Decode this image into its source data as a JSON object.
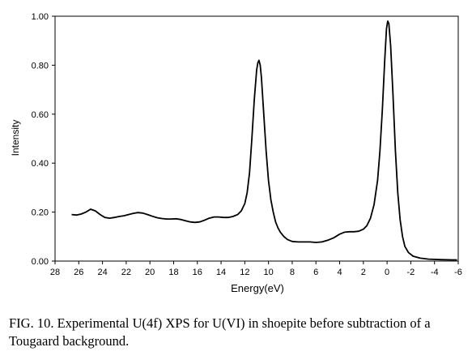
{
  "figure": {
    "caption": "FIG. 10. Experimental U(4f) XPS for U(VI) in shoepite before subtraction of a Tougaard background."
  },
  "chart_data": {
    "type": "line",
    "title": "",
    "xlabel": "Energy(eV)",
    "ylabel": "Intensity",
    "xlim": [
      28,
      -6
    ],
    "ylim": [
      0,
      1.0
    ],
    "x_reversed": true,
    "x_ticks": [
      "28",
      "26",
      "24",
      "22",
      "20",
      "18",
      "16",
      "14",
      "12",
      "10",
      "8",
      "6",
      "4",
      "2",
      "0",
      "-2",
      "-4",
      "-6"
    ],
    "y_ticks": [
      "0.00",
      "0.20",
      "0.40",
      "0.60",
      "0.80",
      "1.00"
    ],
    "grid": false,
    "legend": "none",
    "series": [
      {
        "color": "#000000",
        "points": [
          [
            26.6,
            0.19
          ],
          [
            26.2,
            0.188
          ],
          [
            25.8,
            0.192
          ],
          [
            25.4,
            0.2
          ],
          [
            25.0,
            0.212
          ],
          [
            24.6,
            0.205
          ],
          [
            24.2,
            0.19
          ],
          [
            23.8,
            0.178
          ],
          [
            23.4,
            0.175
          ],
          [
            23.0,
            0.178
          ],
          [
            22.6,
            0.182
          ],
          [
            22.2,
            0.185
          ],
          [
            21.8,
            0.19
          ],
          [
            21.4,
            0.195
          ],
          [
            21.0,
            0.198
          ],
          [
            20.6,
            0.196
          ],
          [
            20.2,
            0.19
          ],
          [
            19.8,
            0.183
          ],
          [
            19.4,
            0.177
          ],
          [
            19.0,
            0.174
          ],
          [
            18.6,
            0.172
          ],
          [
            18.2,
            0.172
          ],
          [
            17.8,
            0.173
          ],
          [
            17.4,
            0.17
          ],
          [
            17.0,
            0.165
          ],
          [
            16.6,
            0.16
          ],
          [
            16.2,
            0.158
          ],
          [
            15.8,
            0.16
          ],
          [
            15.4,
            0.167
          ],
          [
            15.0,
            0.175
          ],
          [
            14.6,
            0.18
          ],
          [
            14.2,
            0.18
          ],
          [
            13.8,
            0.178
          ],
          [
            13.4,
            0.178
          ],
          [
            13.0,
            0.182
          ],
          [
            12.6,
            0.19
          ],
          [
            12.3,
            0.205
          ],
          [
            12.0,
            0.235
          ],
          [
            11.8,
            0.28
          ],
          [
            11.6,
            0.36
          ],
          [
            11.4,
            0.5
          ],
          [
            11.2,
            0.66
          ],
          [
            11.0,
            0.78
          ],
          [
            10.9,
            0.81
          ],
          [
            10.8,
            0.82
          ],
          [
            10.7,
            0.8
          ],
          [
            10.6,
            0.75
          ],
          [
            10.4,
            0.6
          ],
          [
            10.2,
            0.45
          ],
          [
            10.0,
            0.33
          ],
          [
            9.8,
            0.25
          ],
          [
            9.6,
            0.2
          ],
          [
            9.4,
            0.16
          ],
          [
            9.2,
            0.135
          ],
          [
            9.0,
            0.118
          ],
          [
            8.7,
            0.1
          ],
          [
            8.4,
            0.088
          ],
          [
            8.0,
            0.08
          ],
          [
            7.5,
            0.078
          ],
          [
            7.0,
            0.078
          ],
          [
            6.5,
            0.078
          ],
          [
            6.0,
            0.076
          ],
          [
            5.5,
            0.078
          ],
          [
            5.0,
            0.085
          ],
          [
            4.5,
            0.095
          ],
          [
            4.0,
            0.11
          ],
          [
            3.6,
            0.118
          ],
          [
            3.2,
            0.12
          ],
          [
            2.8,
            0.12
          ],
          [
            2.4,
            0.122
          ],
          [
            2.0,
            0.13
          ],
          [
            1.7,
            0.145
          ],
          [
            1.4,
            0.175
          ],
          [
            1.1,
            0.23
          ],
          [
            0.8,
            0.33
          ],
          [
            0.6,
            0.45
          ],
          [
            0.4,
            0.62
          ],
          [
            0.2,
            0.82
          ],
          [
            0.05,
            0.95
          ],
          [
            -0.05,
            0.98
          ],
          [
            -0.15,
            0.97
          ],
          [
            -0.3,
            0.88
          ],
          [
            -0.5,
            0.68
          ],
          [
            -0.7,
            0.45
          ],
          [
            -0.9,
            0.28
          ],
          [
            -1.1,
            0.17
          ],
          [
            -1.3,
            0.1
          ],
          [
            -1.5,
            0.06
          ],
          [
            -1.8,
            0.035
          ],
          [
            -2.2,
            0.02
          ],
          [
            -2.8,
            0.012
          ],
          [
            -3.5,
            0.008
          ],
          [
            -4.5,
            0.006
          ],
          [
            -5.5,
            0.005
          ],
          [
            -5.9,
            0.005
          ]
        ]
      }
    ]
  }
}
